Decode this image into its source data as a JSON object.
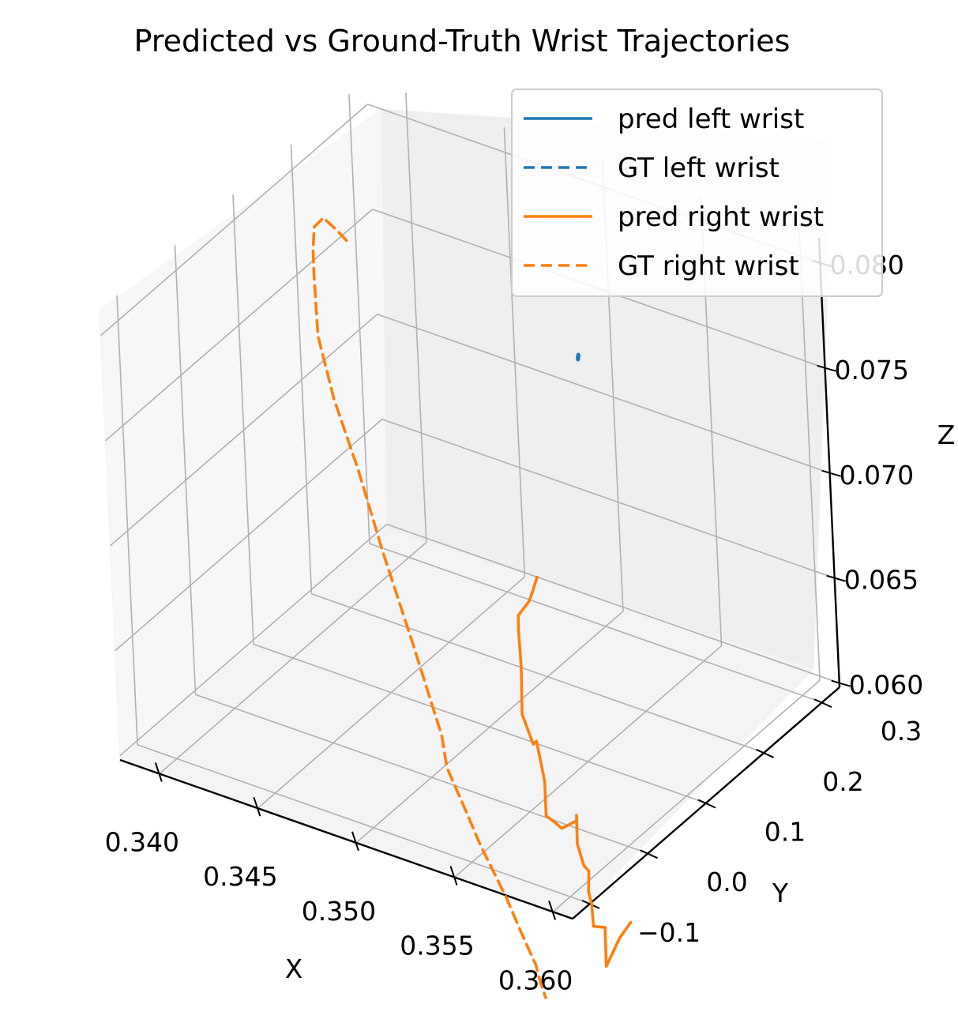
{
  "chart_data": {
    "type": "line",
    "projection": "3d",
    "title": "Predicted vs Ground-Truth Wrist Trajectories",
    "xlabel": "X",
    "ylabel": "Y",
    "zlabel": "Z",
    "xlim": [
      0.338,
      0.361
    ],
    "ylim": [
      -0.13,
      0.33
    ],
    "zlim": [
      0.0598,
      0.0812
    ],
    "x_ticks": [
      "0.340",
      "0.345",
      "0.350",
      "0.355",
      "0.360"
    ],
    "y_ticks": [
      "−0.1",
      "0.0",
      "0.1",
      "0.2",
      "0.3"
    ],
    "z_ticks": [
      "0.060",
      "0.065",
      "0.070",
      "0.075",
      "0.080"
    ],
    "grid": true,
    "legend_position": "upper-right",
    "colors": {
      "left": "#1f77b4",
      "right": "#ff7f0e",
      "pane": "#f2f2f2",
      "grid": "#b0b0b0"
    },
    "series": [
      {
        "name": "pred left wrist",
        "color": "#1f77b4",
        "linestyle": "solid",
        "points": [
          [
            0.3487,
            0.316,
            0.0717
          ],
          [
            0.3487,
            0.317,
            0.0719
          ],
          [
            0.3487,
            0.316,
            0.0718
          ]
        ]
      },
      {
        "name": "GT left wrist",
        "color": "#1f77b4",
        "linestyle": "dashed",
        "points": [
          [
            0.3487,
            0.316,
            0.0718
          ],
          [
            0.3487,
            0.317,
            0.0718
          ]
        ]
      },
      {
        "name": "pred right wrist",
        "color": "#ff7f0e",
        "linestyle": "solid",
        "points": [
          [
            0.3543,
            0.052,
            0.0695
          ],
          [
            0.3538,
            0.06,
            0.0685
          ],
          [
            0.3542,
            0.04,
            0.0686
          ],
          [
            0.3533,
            0.05,
            0.0674
          ],
          [
            0.3539,
            0.03,
            0.0673
          ],
          [
            0.3538,
            0.035,
            0.0655
          ],
          [
            0.3542,
            0.02,
            0.0637
          ],
          [
            0.3544,
            0.03,
            0.0621
          ],
          [
            0.3541,
            0.045,
            0.0618
          ],
          [
            0.3549,
            0.03,
            0.0605
          ],
          [
            0.3552,
            0.02,
            0.0592
          ],
          [
            0.3553,
            0.03,
            0.0587
          ],
          [
            0.3552,
            0.045,
            0.058
          ],
          [
            0.3546,
            0.09,
            0.0571
          ],
          [
            0.3549,
            0.08,
            0.0577
          ],
          [
            0.3555,
            0.06,
            0.057
          ],
          [
            0.3561,
            0.05,
            0.0564
          ],
          [
            0.3565,
            0.045,
            0.0564
          ],
          [
            0.3569,
            0.03,
            0.0559
          ],
          [
            0.3575,
            0.015,
            0.0559
          ],
          [
            0.3577,
            0.01,
            0.055
          ],
          [
            0.358,
            0.02,
            0.0548
          ],
          [
            0.3586,
            0.0,
            0.0553
          ],
          [
            0.3592,
            -0.02,
            0.0543
          ],
          [
            0.3584,
            0.03,
            0.0542
          ],
          [
            0.3587,
            0.04,
            0.0548
          ]
        ]
      },
      {
        "name": "GT right wrist",
        "color": "#ff7f0e",
        "linestyle": "dashed",
        "points": [
          [
            0.3422,
            0.15,
            0.0792
          ],
          [
            0.3408,
            0.18,
            0.0785
          ],
          [
            0.3395,
            0.2,
            0.0782
          ],
          [
            0.339,
            0.2,
            0.0776
          ],
          [
            0.3392,
            0.19,
            0.0768
          ],
          [
            0.3395,
            0.18,
            0.076
          ],
          [
            0.3405,
            0.15,
            0.0741
          ],
          [
            0.3418,
            0.13,
            0.072
          ],
          [
            0.3435,
            0.11,
            0.0697
          ],
          [
            0.3455,
            0.08,
            0.0672
          ],
          [
            0.3478,
            0.05,
            0.0642
          ],
          [
            0.35,
            0.02,
            0.0613
          ],
          [
            0.3505,
            0.01,
            0.0602
          ],
          [
            0.352,
            -0.01,
            0.0591
          ],
          [
            0.353,
            -0.02,
            0.058
          ],
          [
            0.3545,
            -0.03,
            0.0563
          ],
          [
            0.3555,
            -0.04,
            0.0552
          ],
          [
            0.3565,
            -0.05,
            0.0542
          ],
          [
            0.357,
            -0.06,
            0.0538
          ],
          [
            0.3574,
            -0.065,
            0.0533
          ]
        ]
      }
    ]
  }
}
